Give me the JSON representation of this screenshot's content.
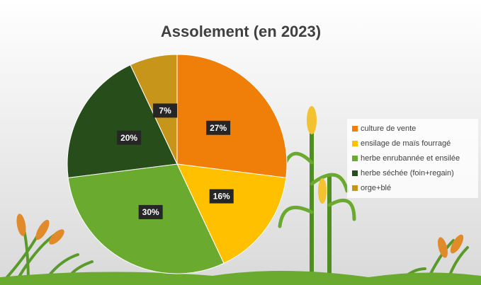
{
  "chart_data": {
    "type": "pie",
    "title": "Assolement (en 2023)",
    "categories": [
      "culture de vente",
      "ensilage de maïs fourragé",
      "herbe enrubannée et ensilée",
      "herbe séchée (foin+regain)",
      "orge+blé"
    ],
    "values": [
      27,
      16,
      30,
      20,
      7
    ],
    "value_labels": [
      "27%",
      "16%",
      "30%",
      "20%",
      "7%"
    ],
    "colors": [
      "#f07f09",
      "#ffc000",
      "#6aaa2e",
      "#264d1a",
      "#c8951b"
    ],
    "legend": "right"
  }
}
